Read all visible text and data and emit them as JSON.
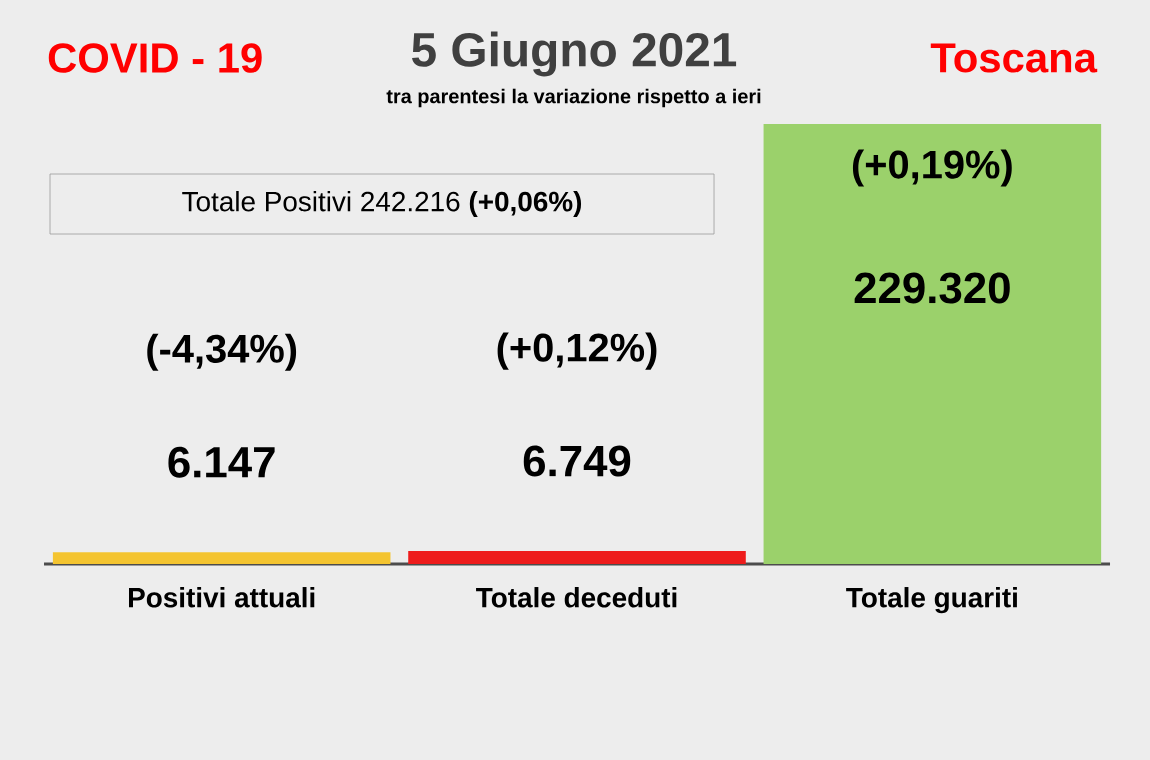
{
  "chart_data": {
    "type": "bar",
    "title": "5 Giugno 2021",
    "subtitle": "tra parentesi la variazione rispetto a ieri",
    "annotations": [
      "COVID - 19",
      "Toscana",
      "Totale Positivi    242.216 **(+0,06%)**",
      "(-4,34%)",
      "(+0,12%)",
      "(+0,19%)"
    ],
    "categories": [
      "Positivi attuali",
      "Totale deceduti",
      "Totale guariti"
    ],
    "values": [
      6147,
      6749,
      229320
    ],
    "value_labels": [
      "6.147",
      "6.749",
      "229.320"
    ],
    "colors": [
      "#f4c430",
      "#ee1c1c",
      "#9bd16b"
    ]
  }
}
